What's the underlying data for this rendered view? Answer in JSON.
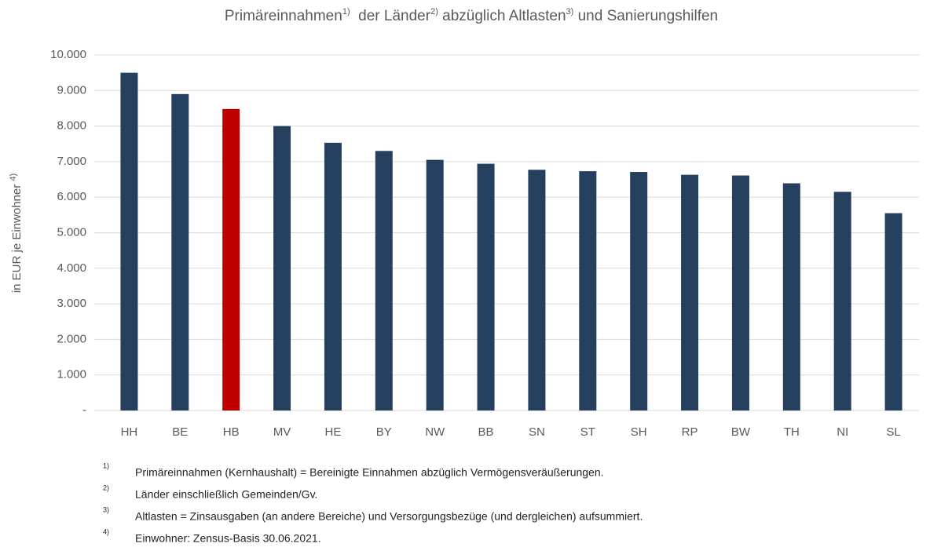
{
  "chart_data": {
    "type": "bar",
    "title_parts": [
      "Primäreinnahmen",
      "1)",
      "  der Länder",
      "2)",
      " abzüglich Altlasten",
      "3)",
      " und Sanierungshilfen"
    ],
    "ylabel_parts": [
      "in EUR je Einwohner ",
      "4)"
    ],
    "categories": [
      "HH",
      "BE",
      "HB",
      "MV",
      "HE",
      "BY",
      "NW",
      "BB",
      "SN",
      "ST",
      "SH",
      "RP",
      "BW",
      "TH",
      "NI",
      "SL"
    ],
    "values": [
      9500,
      8900,
      8480,
      8000,
      7530,
      7300,
      7050,
      6940,
      6770,
      6730,
      6710,
      6630,
      6610,
      6390,
      6150,
      5550
    ],
    "colors": [
      "#253f5f",
      "#253f5f",
      "#c00000",
      "#253f5f",
      "#253f5f",
      "#253f5f",
      "#253f5f",
      "#253f5f",
      "#253f5f",
      "#253f5f",
      "#253f5f",
      "#253f5f",
      "#253f5f",
      "#253f5f",
      "#253f5f",
      "#253f5f"
    ],
    "ylim": [
      0,
      10000
    ],
    "yticks": [
      {
        "value": 0,
        "label": "-"
      },
      {
        "value": 1000,
        "label": "1.000"
      },
      {
        "value": 2000,
        "label": "2.000"
      },
      {
        "value": 3000,
        "label": "3.000"
      },
      {
        "value": 4000,
        "label": "4.000"
      },
      {
        "value": 5000,
        "label": "5.000"
      },
      {
        "value": 6000,
        "label": "6.000"
      },
      {
        "value": 7000,
        "label": "7.000"
      },
      {
        "value": 8000,
        "label": "8.000"
      },
      {
        "value": 9000,
        "label": "9.000"
      },
      {
        "value": 10000,
        "label": "10.000"
      }
    ],
    "grid": true,
    "footnotes": [
      {
        "marker": "1)",
        "text": "Primäreinnahmen (Kernhaushalt) = Bereinigte Einnahmen abzüglich Vermögensveräußerungen."
      },
      {
        "marker": "2)",
        "text": "Länder einschließlich Gemeinden/Gv."
      },
      {
        "marker": "3)",
        "text": "Altlasten = Zinsausgaben (an andere Bereiche) und Versorgungsbezüge (und dergleichen) aufsummiert."
      },
      {
        "marker": "4)",
        "text": "Einwohner: Zensus-Basis 30.06.2021."
      }
    ]
  }
}
